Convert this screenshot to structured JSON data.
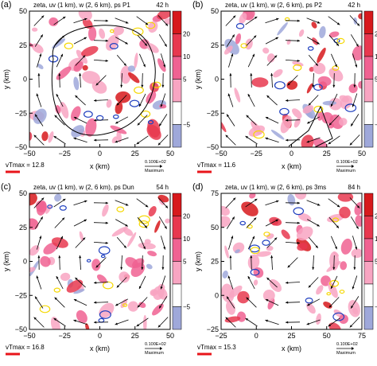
{
  "panels": [
    {
      "letter": "(a)",
      "header": "zeta, uv (1 km), w (2, 6 km), ps  P1",
      "time": "42 h",
      "vtmax": "vTmax = 12.8",
      "xticks": [
        "−50",
        "−25",
        "0",
        "25",
        "50"
      ],
      "yticks": [
        "50",
        "25",
        "0",
        "−25",
        "−50"
      ],
      "xlabel": "x (km)",
      "ylabel": "y (km)"
    },
    {
      "letter": "(b)",
      "header": "zeta, uv (1 km), w (2, 6 km), ps  P2",
      "time": "42 h",
      "vtmax": "vTmax = 11.6",
      "xticks": [
        "−50",
        "−25",
        "0",
        "25",
        "50"
      ],
      "yticks": [
        "50",
        "25",
        "0",
        "−25",
        "−50"
      ],
      "xlabel": "x (km)",
      "ylabel": "y (km)"
    },
    {
      "letter": "(c)",
      "header": "zeta, uv (1 km), w (2, 6 km), ps  Dun",
      "time": "54 h",
      "vtmax": "vTmax = 16.8",
      "xticks": [
        "−50",
        "−25",
        "0",
        "25",
        "50"
      ],
      "yticks": [
        "50",
        "25",
        "0",
        "−25",
        "−50"
      ],
      "xlabel": "x (km)",
      "ylabel": "y (km)"
    },
    {
      "letter": "(d)",
      "header": "zeta, uv (1 km), w (2, 6 km), ps  3ms",
      "time": "84 h",
      "vtmax": "vTmax = 15.3",
      "xticks": [
        "−25",
        "0",
        "25",
        "50",
        "75"
      ],
      "yticks": [
        "75",
        "50",
        "25",
        "0",
        "−25"
      ],
      "xlabel": "x (km)",
      "ylabel": "y (km)"
    }
  ],
  "colorbar": {
    "labels": [
      "20",
      "10",
      "5",
      "−5"
    ],
    "colors": [
      "#d7191c",
      "#e8384f",
      "#f06292",
      "#f8a5c2",
      "#ffffff",
      "#9fa8da"
    ]
  },
  "reference_vector": {
    "value": "0.100E+02",
    "caption": "Maximum"
  },
  "contour_colors": {
    "updraft_2km": "#1f3fbf",
    "updraft_6km": "#f5d800",
    "pressure": "#000000"
  }
}
